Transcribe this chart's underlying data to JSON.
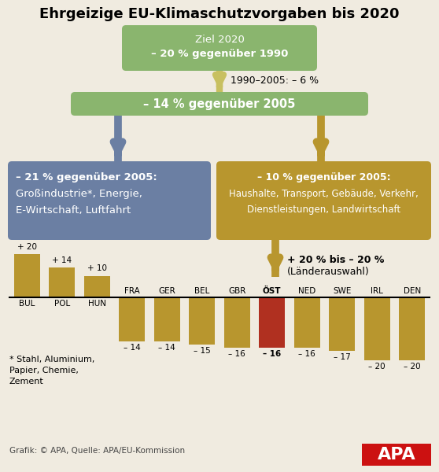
{
  "title": "Ehrgeizige EU-Klimaschutzvorgaben bis 2020",
  "bg_color": "#f0ebe0",
  "green_color": "#8ab56e",
  "blue_color": "#6b7fa3",
  "gold_color": "#b8962e",
  "arrow_green_color": "#c8c060",
  "bar_color_default": "#b8962e",
  "bar_color_highlight": "#b03020",
  "categories": [
    "BUL",
    "POL",
    "HUN",
    "FRA",
    "GER",
    "BEL",
    "GBR",
    "ÖST",
    "NED",
    "SWE",
    "IRL",
    "DEN"
  ],
  "values": [
    20,
    14,
    10,
    -14,
    -14,
    -15,
    -16,
    -16,
    -16,
    -17,
    -20,
    -20
  ],
  "highlight_index": 7,
  "value_labels": [
    "+ 20",
    "+ 14",
    "+ 10",
    "– 14",
    "– 14",
    "– 15",
    "– 16",
    "– 16",
    "– 16",
    "– 17",
    "– 20",
    "– 20"
  ],
  "footnote": "* Stahl, Aluminium,\nPapier, Chemie,\nZement",
  "source": "Grafik: © APA, Quelle: APA/EU-Kommission"
}
